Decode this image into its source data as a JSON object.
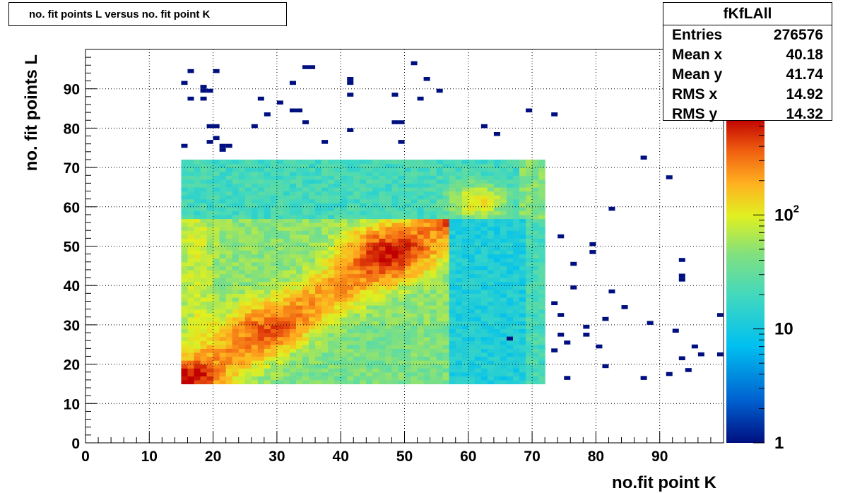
{
  "chart_data": {
    "type": "heatmap",
    "title": "no. fit points L versus no. fit point K",
    "xlabel": "no.fit point K",
    "ylabel": "no. fit points  L",
    "xlim": [
      0,
      100
    ],
    "ylim": [
      0,
      100
    ],
    "x_ticks": [
      0,
      10,
      20,
      30,
      40,
      50,
      60,
      70,
      80,
      90
    ],
    "y_ticks": [
      0,
      10,
      20,
      30,
      40,
      50,
      60,
      70,
      80,
      90
    ],
    "z_scale": "log",
    "z_range": [
      1,
      700
    ],
    "z_ticks": [
      {
        "value": 1,
        "label": "1"
      },
      {
        "value": 10,
        "label": "10"
      },
      {
        "value": 100,
        "label": "10",
        "sup": "2"
      }
    ],
    "grid": true,
    "stats": {
      "name": "fKfLAll",
      "rows": [
        {
          "label": "Entries",
          "value": "276576"
        },
        {
          "label": "Mean x",
          "value": "40.18"
        },
        {
          "label": "Mean y",
          "value": "41.74"
        },
        {
          "label": "RMS x",
          "value": "14.92"
        },
        {
          "label": "RMS y",
          "value": "14.32"
        }
      ]
    },
    "regions": [
      {
        "name": "upper band",
        "x_range": [
          15,
          72
        ],
        "y_range": [
          57,
          72
        ],
        "level": 30
      },
      {
        "name": "right band",
        "x_range": [
          57,
          72
        ],
        "y_range": [
          15,
          57
        ],
        "level": 12
      },
      {
        "name": "main block",
        "x_range": [
          15,
          57
        ],
        "y_range": [
          15,
          57
        ],
        "level": 110
      }
    ],
    "isolated_points": [
      [
        15,
        91
      ],
      [
        16,
        94
      ],
      [
        16,
        87
      ],
      [
        18,
        90
      ],
      [
        18,
        89
      ],
      [
        19,
        89
      ],
      [
        18,
        87
      ],
      [
        19,
        80
      ],
      [
        20,
        80
      ],
      [
        20,
        77
      ],
      [
        19,
        76
      ],
      [
        21,
        75
      ],
      [
        22,
        75
      ],
      [
        21,
        74
      ],
      [
        15,
        75
      ],
      [
        20,
        94
      ],
      [
        26,
        80
      ],
      [
        27,
        87
      ],
      [
        28,
        83
      ],
      [
        30,
        86
      ],
      [
        32,
        91
      ],
      [
        32,
        84
      ],
      [
        33,
        84
      ],
      [
        34,
        81
      ],
      [
        34,
        95
      ],
      [
        35,
        95
      ],
      [
        37,
        76
      ],
      [
        41,
        92
      ],
      [
        41,
        91
      ],
      [
        41,
        88
      ],
      [
        41,
        79
      ],
      [
        48,
        88
      ],
      [
        48,
        81
      ],
      [
        49,
        81
      ],
      [
        49,
        76
      ],
      [
        51,
        96
      ],
      [
        52,
        87
      ],
      [
        53,
        92
      ],
      [
        55,
        89
      ],
      [
        62,
        80
      ],
      [
        64,
        78
      ],
      [
        69,
        84
      ],
      [
        73,
        83
      ],
      [
        74,
        52
      ],
      [
        76,
        45
      ],
      [
        76,
        39
      ],
      [
        79,
        50
      ],
      [
        79,
        48
      ],
      [
        82,
        59
      ],
      [
        82,
        38
      ],
      [
        84,
        34
      ],
      [
        81,
        31
      ],
      [
        88,
        30
      ],
      [
        87,
        72
      ],
      [
        91,
        67
      ],
      [
        93,
        46
      ],
      [
        93,
        42
      ],
      [
        93,
        41
      ],
      [
        73,
        35
      ],
      [
        74,
        32
      ],
      [
        74,
        27
      ],
      [
        75,
        25
      ],
      [
        73,
        23
      ],
      [
        78,
        29
      ],
      [
        78,
        27
      ],
      [
        80,
        24
      ],
      [
        81,
        19
      ],
      [
        75,
        16
      ],
      [
        87,
        16
      ],
      [
        91,
        17
      ],
      [
        92,
        28
      ],
      [
        93,
        21
      ],
      [
        94,
        18
      ],
      [
        95,
        24
      ],
      [
        96,
        22
      ],
      [
        99,
        32
      ],
      [
        99,
        22
      ],
      [
        66,
        26
      ]
    ]
  }
}
